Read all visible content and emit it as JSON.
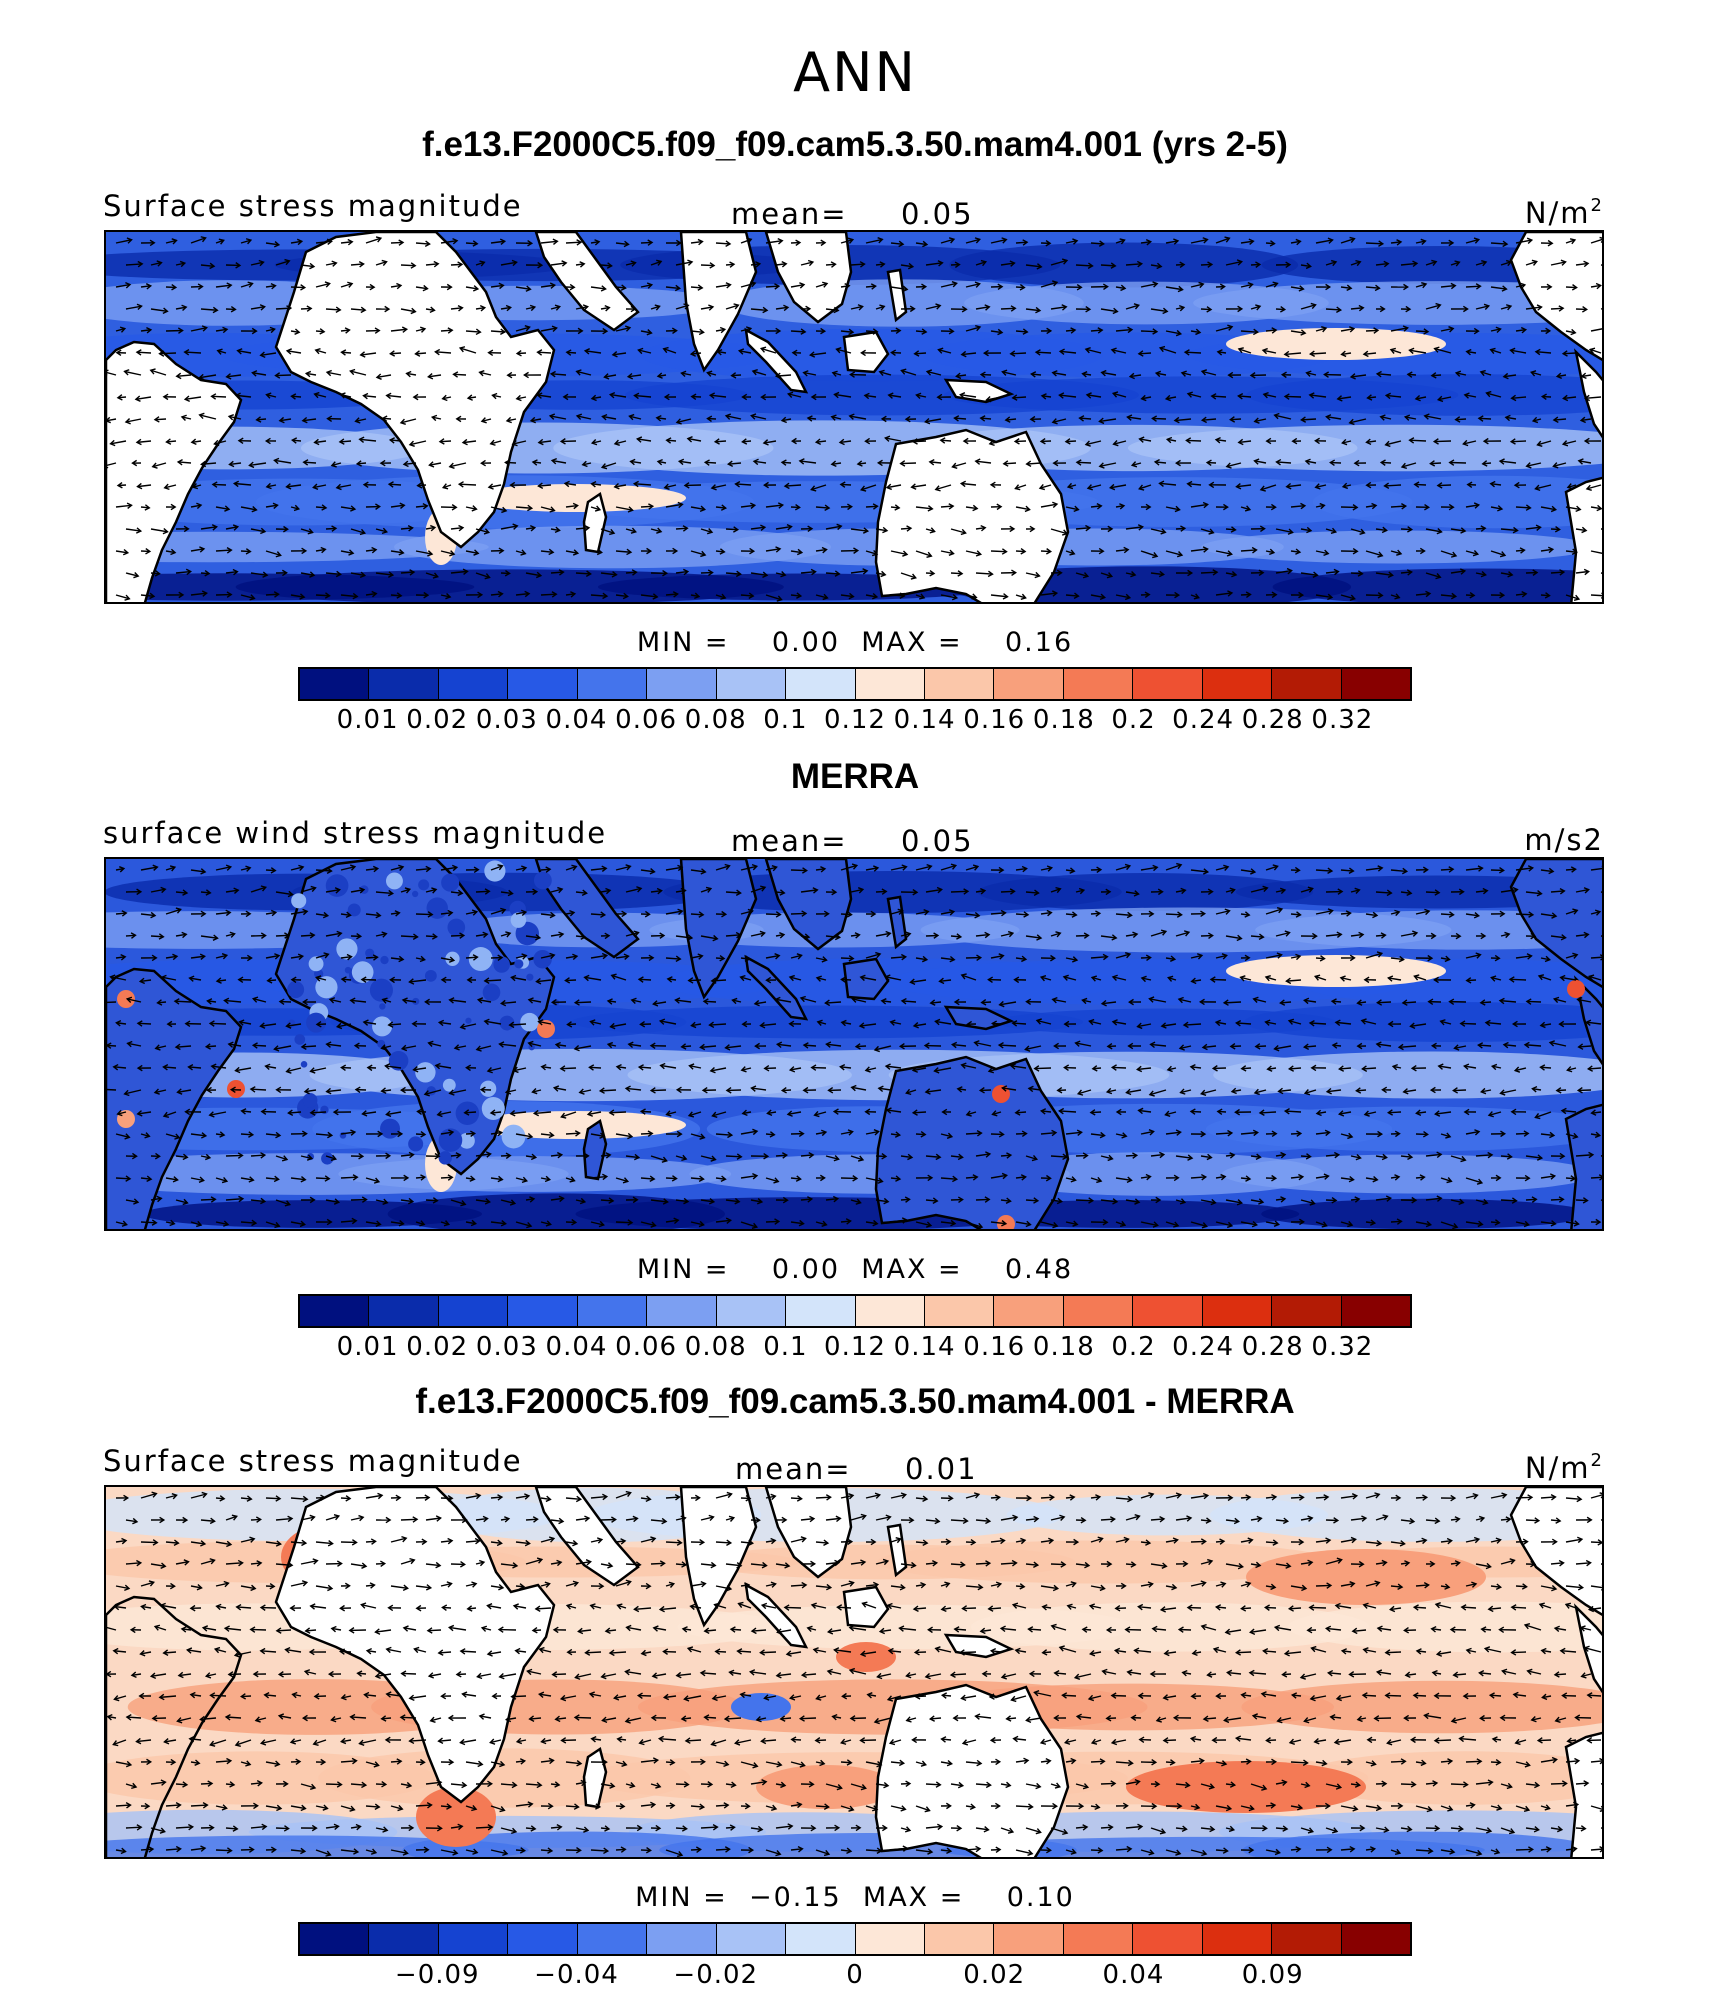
{
  "figure": {
    "season": "ANN"
  },
  "panels": [
    {
      "title": "f.e13.F2000C5.f09_f09.cam5.3.50.mam4.001 (yrs 2-5)",
      "variable": "Surface stress magnitude",
      "mean_label": "mean=",
      "mean_value": "0.05",
      "units": "N/m",
      "units_sup": "2",
      "min_label": "MIN =",
      "min_value": "0.00",
      "max_label": "MAX =",
      "max_value": "0.16",
      "colorbar": {
        "tick_labels": [
          "0.01",
          "0.02",
          "0.03",
          "0.04",
          "0.06",
          "0.08",
          "0.1",
          "0.12",
          "0.14",
          "0.16",
          "0.18",
          "0.2",
          "0.24",
          "0.28",
          "0.32"
        ],
        "colors": [
          "#00107f",
          "#0a2cab",
          "#1543d1",
          "#2759e6",
          "#4474ec",
          "#7c9ff2",
          "#a8c2f6",
          "#d3e4fa",
          "#fde7d7",
          "#fbc7aa",
          "#f8a07c",
          "#f47a55",
          "#ee5132",
          "#dc2f0f",
          "#b31b05",
          "#880000"
        ]
      },
      "map": {
        "style": "model",
        "ocean_base": "#2f5fe0",
        "land": "#ffffff"
      }
    },
    {
      "title": "MERRA",
      "variable": "surface wind stress magnitude",
      "mean_label": "mean=",
      "mean_value": "0.05",
      "units": "m/s2",
      "units_sup": "",
      "min_label": "MIN =",
      "min_value": "0.00",
      "max_label": "MAX =",
      "max_value": "0.48",
      "colorbar": {
        "tick_labels": [
          "0.01",
          "0.02",
          "0.03",
          "0.04",
          "0.06",
          "0.08",
          "0.1",
          "0.12",
          "0.14",
          "0.16",
          "0.18",
          "0.2",
          "0.24",
          "0.28",
          "0.32"
        ],
        "colors": [
          "#00107f",
          "#0a2cab",
          "#1543d1",
          "#2759e6",
          "#4474ec",
          "#7c9ff2",
          "#a8c2f6",
          "#d3e4fa",
          "#fde7d7",
          "#fbc7aa",
          "#f8a07c",
          "#f47a55",
          "#ee5132",
          "#dc2f0f",
          "#b31b05",
          "#880000"
        ]
      },
      "map": {
        "style": "obs",
        "ocean_base": "#2b58dc",
        "land": "#2f56d6"
      }
    },
    {
      "title": "f.e13.F2000C5.f09_f09.cam5.3.50.mam4.001 - MERRA",
      "variable": "Surface stress magnitude",
      "mean_label": "mean=",
      "mean_value": "0.01",
      "units": "N/m",
      "units_sup": "2",
      "min_label": "MIN =",
      "min_value": "−0.15",
      "max_label": "MAX =",
      "max_value": "0.10",
      "colorbar": {
        "tick_labels": [
          "−0.09",
          "−0.04",
          "−0.02",
          "0",
          "0.02",
          "0.04",
          "0.09"
        ],
        "colors": [
          "#00107f",
          "#0a2cab",
          "#1543d1",
          "#2759e6",
          "#4474ec",
          "#7c9ff2",
          "#a8c2f6",
          "#d3e4fa",
          "#fde7d7",
          "#fbc7aa",
          "#f8a07c",
          "#f47a55",
          "#ee5132",
          "#dc2f0f",
          "#b31b05",
          "#880000"
        ]
      },
      "map": {
        "style": "diff",
        "ocean_base": "#fbd9c4",
        "land": "#ffffff"
      }
    }
  ]
}
